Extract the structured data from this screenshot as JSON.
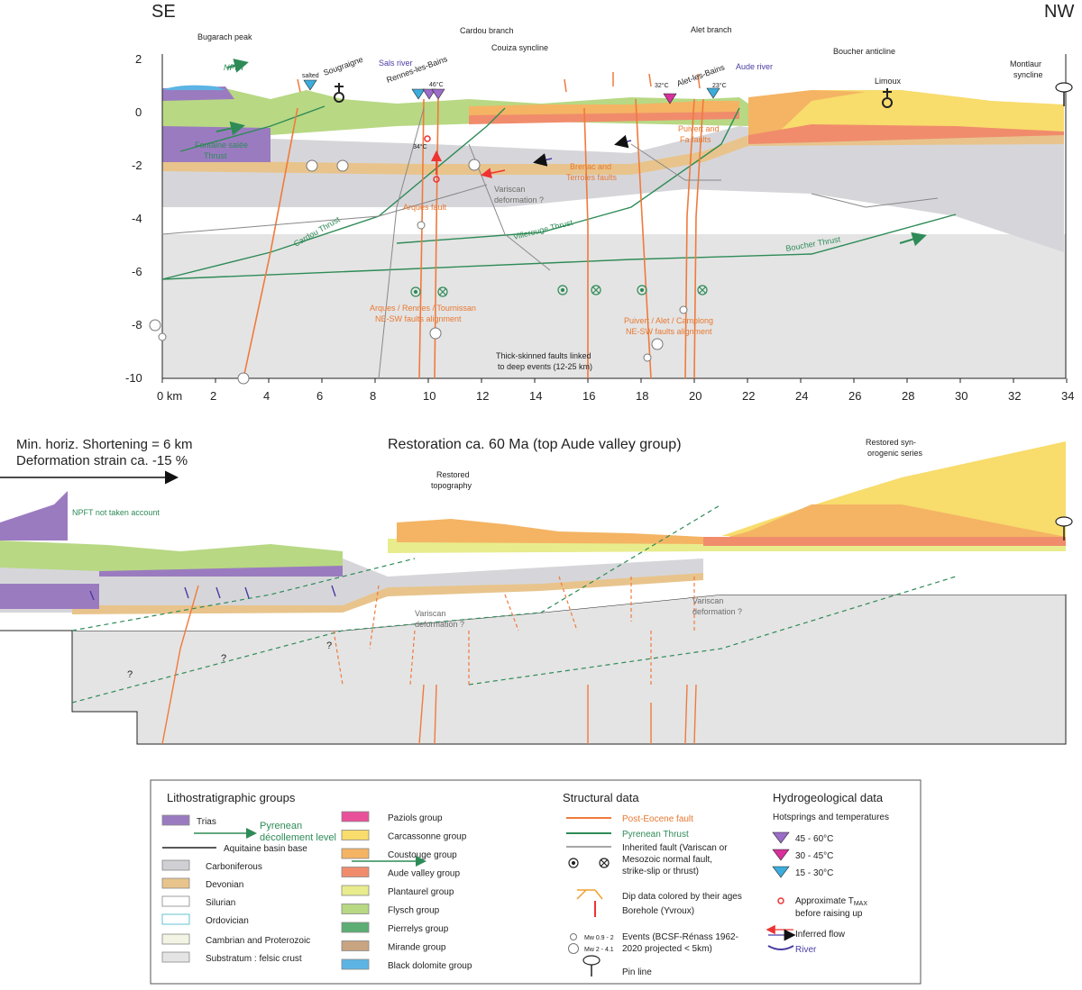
{
  "orientation": {
    "left": "SE",
    "right": "NW"
  },
  "section": {
    "yaxis_ticks": [
      "2",
      "0",
      "-2",
      "-4",
      "-6",
      "-8",
      "-10"
    ],
    "xaxis_ticks": [
      "0 km",
      "2",
      "4",
      "6",
      "8",
      "10",
      "12",
      "14",
      "16",
      "18",
      "20",
      "22",
      "24",
      "26",
      "28",
      "30",
      "32",
      "34"
    ],
    "places": {
      "bugarach": "Bugarach peak",
      "npft": "NPFT",
      "salted": "salted",
      "sougraigne": "Sougraigne",
      "sals": "Sals river",
      "rennes": "Rennes-les-Bains",
      "temp46": "46°C",
      "cardou_branch": "Cardou branch",
      "couiza": "Couiza syncline",
      "alet_branch": "Alet branch",
      "alet_bains": "Alet-les-Bains",
      "temp32": "32°C",
      "temp23": "23°C",
      "aude": "Aude river",
      "boucher_anticline": "Boucher anticline",
      "limoux": "Limoux",
      "montlaur_1": "Montlaur",
      "montlaur_2": "syncline",
      "fontaine_1": "Fontaine salée",
      "fontaine_2": "Thrust",
      "temp34": "34°C",
      "arques_fault": "Arques fault",
      "variscan_1": "Variscan",
      "variscan_2": "deformation ?",
      "brenac_1": "Brenac and",
      "brenac_2": "Terroles faults",
      "puivert_1": "Puivert and",
      "puivert_2": "Fa faults",
      "cardou_thrust": "Cardou Thrust",
      "villerouge_thrust": "Villerouge Thrust",
      "boucher_thrust": "Boucher Thrust",
      "arques_align_1": "Arques / Rennes / Tournissan",
      "arques_align_2": "NE-SW faults alignment",
      "puivert_align_1": "Puivert / Alet / Camplong",
      "puivert_align_2": "NE-SW faults alignment",
      "thick_1": "Thick-skinned faults linked",
      "thick_2": "to deep events (12-25 km)"
    }
  },
  "restoration": {
    "shortening": "Min. horiz. Shortening = 6 km",
    "strain": "Deformation strain ca. -15 %",
    "title": "Restoration ca. 60 Ma (top Aude valley group)",
    "npft_note": "NPFT not taken account",
    "restored_topo_1": "Restored",
    "restored_topo_2": "topography",
    "restored_syn_1": "Restored syn-",
    "restored_syn_2": "orogenic series",
    "variscan_1": "Variscan",
    "variscan_2": "deformation ?",
    "question": "?"
  },
  "legend": {
    "litho_title": "Lithostratigraphic groups",
    "litho": [
      {
        "label": "Trias",
        "color": "#9b7bc0"
      },
      {
        "label": "Carboniferous",
        "color": "#cfcfd4"
      },
      {
        "label": "Devonian",
        "color": "#e8c48c"
      },
      {
        "label": "Silurian",
        "color": "#ffffff"
      },
      {
        "label": "Ordovician",
        "color": "#ffffff"
      },
      {
        "label": "Cambrian and Proterozoic",
        "color": "#f4f4e4"
      },
      {
        "label": "Substratum : felsic crust",
        "color": "#e4e4e4"
      }
    ],
    "pyrenean_decollement_1": "Pyrenean",
    "pyrenean_decollement_2": "décollement level",
    "aquitaine": "Aquitaine basin base",
    "groups": [
      {
        "label": "Paziols group",
        "color": "#e8509a"
      },
      {
        "label": "Carcassonne group",
        "color": "#f8dc6c"
      },
      {
        "label": "Coustouge group",
        "color": "#f4b464"
      },
      {
        "label": "Aude valley group",
        "color": "#f08c6c"
      },
      {
        "label": "Plantaurel group",
        "color": "#e8ec8c"
      },
      {
        "label": "Flysch group",
        "color": "#b8d884"
      },
      {
        "label": "Pierrelys group",
        "color": "#5cae74"
      },
      {
        "label": "Mirande group",
        "color": "#c8a480"
      },
      {
        "label": "Black dolomite group",
        "color": "#5cb4e4"
      }
    ],
    "struct_title": "Structural data",
    "post_eocene": "Post-Eocene fault",
    "pyrenean_thrust": "Pyrenean Thrust",
    "inherited_1": "Inherited fault (Variscan or",
    "inherited_2": "Mesozoic normal fault,",
    "inherited_3": "strike-slip or thrust)",
    "dip_data": "Dip data colored by their ages",
    "borehole": "Borehole (Yvroux)",
    "events_small": "Mw 0.9 - 2",
    "events_big": "Mw 2 - 4.1",
    "events_1": "Events (BCSF-Rénass 1962-",
    "events_2": "2020 projected < 5km)",
    "pin_line": "Pin line",
    "hydro_title": "Hydrogeological data",
    "hot_title": "Hotsprings and temperatures",
    "hot": [
      {
        "label": "45 - 60°C",
        "color": "#9b6cc8"
      },
      {
        "label": "30 - 45°C",
        "color": "#d8309c"
      },
      {
        "label": "15 - 30°C",
        "color": "#3cacdc"
      }
    ],
    "tmax_1": "Approximate T",
    "tmax_sub": "MAX",
    "tmax_2": "before raising up",
    "inferred": "Inferred flow",
    "river": "River"
  },
  "colors": {
    "orange_fault": "#f07a3c",
    "green_thrust": "#2e8b57",
    "river_blue": "#4a3ca4",
    "text_orange": "#e87830",
    "text_green": "#2e8b57",
    "text_grey": "#6b6b6b"
  }
}
